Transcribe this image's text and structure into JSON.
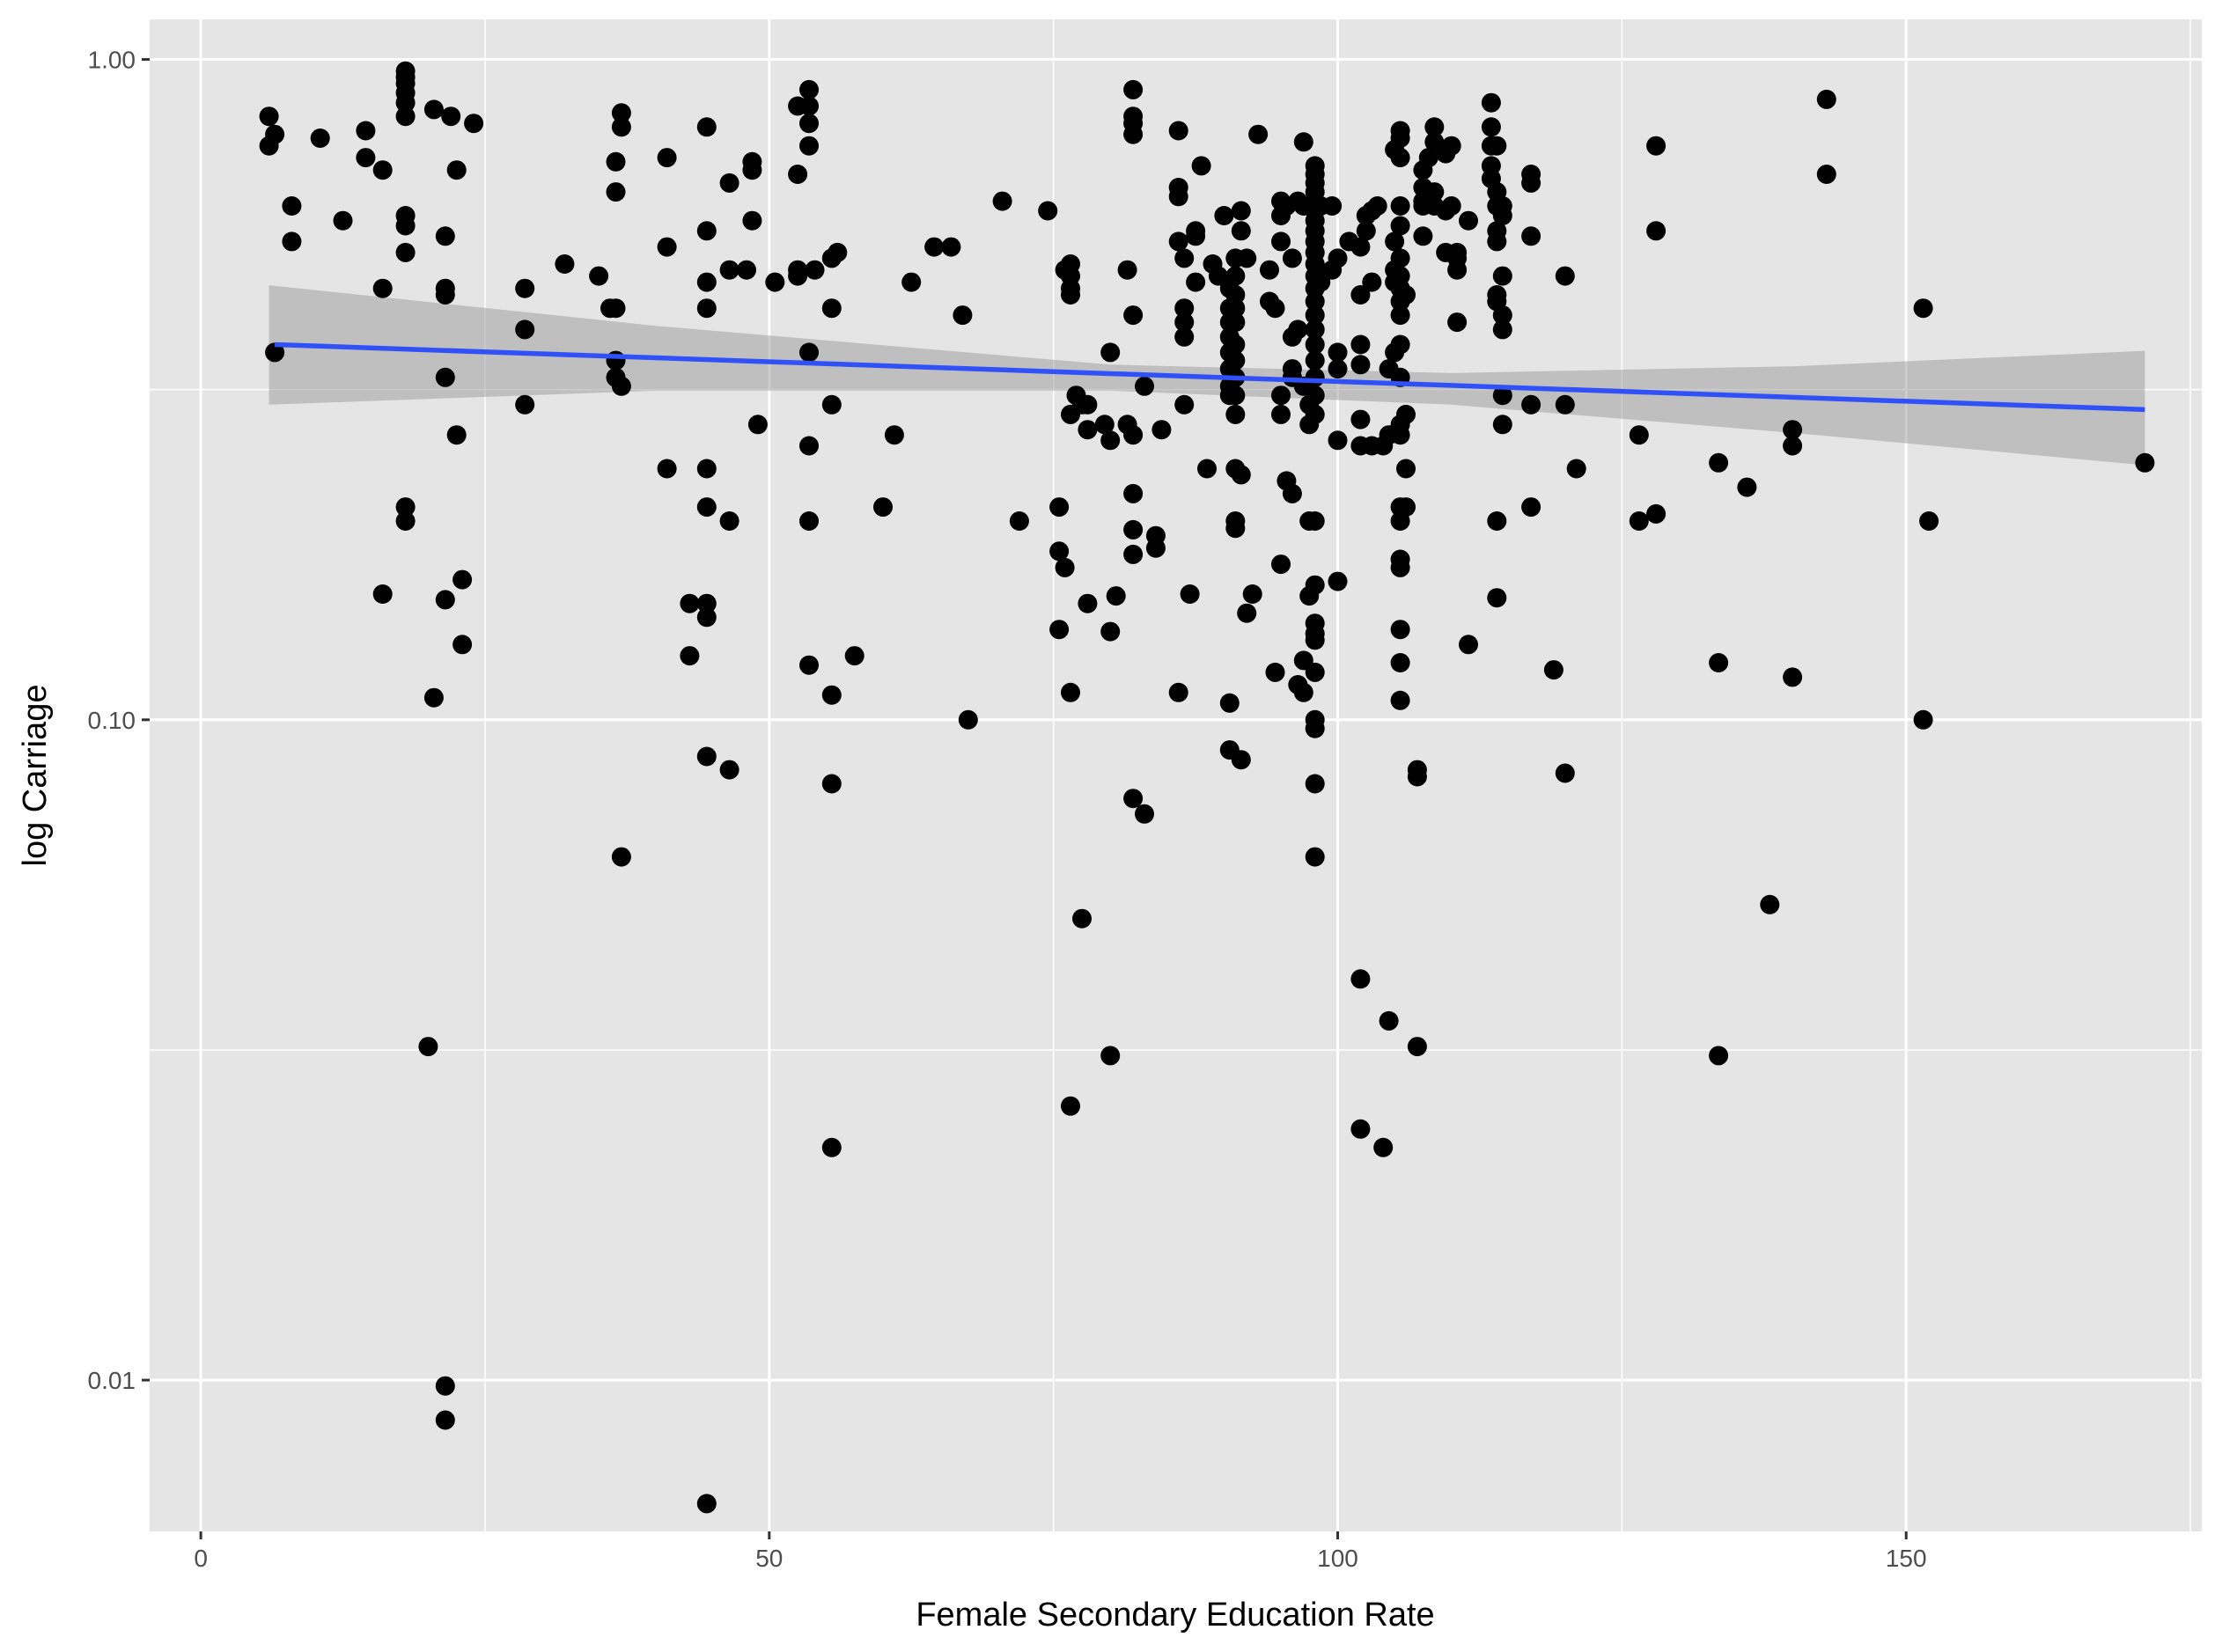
{
  "chart_data": {
    "type": "scatter",
    "xlabel": "Female Secondary Education Rate",
    "ylabel": "log Carriage",
    "y_scale": "log10",
    "xlim": [
      -4.5,
      176
    ],
    "ylim": [
      0.0059,
      1.15
    ],
    "x_ticks": [
      0,
      50,
      100,
      150
    ],
    "x_tick_labels": [
      "0",
      "50",
      "100",
      "150"
    ],
    "y_ticks": [
      0.01,
      0.1,
      1.0
    ],
    "y_tick_labels": [
      "0.01",
      "0.10",
      "1.00"
    ],
    "grid": true,
    "legend": "none",
    "colors": {
      "panel": "#e5e5e5",
      "grid": "#ffffff",
      "points": "#000000",
      "fit_line": "#3050f8",
      "ribbon": "#999999"
    },
    "trend": {
      "method": "lm",
      "x": [
        6.5,
        171
      ],
      "y": [
        0.37,
        0.295
      ],
      "ribbon": [
        {
          "x": 6,
          "lower": 0.3,
          "upper": 0.455
        },
        {
          "x": 40,
          "lower": 0.315,
          "upper": 0.395
        },
        {
          "x": 80,
          "lower": 0.315,
          "upper": 0.345
        },
        {
          "x": 110,
          "lower": 0.3,
          "upper": 0.335
        },
        {
          "x": 140,
          "lower": 0.272,
          "upper": 0.343
        },
        {
          "x": 171,
          "lower": 0.243,
          "upper": 0.362
        }
      ]
    },
    "points": [
      [
        6,
        0.82
      ],
      [
        6,
        0.74
      ],
      [
        6.5,
        0.77
      ],
      [
        6.5,
        0.36
      ],
      [
        8,
        0.6
      ],
      [
        8,
        0.53
      ],
      [
        10.5,
        0.76
      ],
      [
        12.5,
        0.57
      ],
      [
        14.5,
        0.78
      ],
      [
        14.5,
        0.71
      ],
      [
        16,
        0.68
      ],
      [
        16,
        0.45
      ],
      [
        16,
        0.155
      ],
      [
        18,
        0.96
      ],
      [
        18,
        0.94
      ],
      [
        18,
        0.92
      ],
      [
        18,
        0.89
      ],
      [
        18,
        0.86
      ],
      [
        18,
        0.82
      ],
      [
        18,
        0.58
      ],
      [
        18,
        0.56
      ],
      [
        18,
        0.51
      ],
      [
        18,
        0.21
      ],
      [
        18,
        0.2
      ],
      [
        20,
        0.032
      ],
      [
        20.5,
        0.84
      ],
      [
        20.5,
        0.108
      ],
      [
        21.5,
        0.54
      ],
      [
        21.5,
        0.45
      ],
      [
        21.5,
        0.44
      ],
      [
        21.5,
        0.33
      ],
      [
        21.5,
        0.152
      ],
      [
        21.5,
        0.0098
      ],
      [
        21.5,
        0.0087
      ],
      [
        22,
        0.82
      ],
      [
        22.5,
        0.68
      ],
      [
        22.5,
        0.27
      ],
      [
        23,
        0.163
      ],
      [
        23,
        0.13
      ],
      [
        24,
        0.8
      ],
      [
        28.5,
        0.45
      ],
      [
        28.5,
        0.39
      ],
      [
        28.5,
        0.3
      ],
      [
        32,
        0.49
      ],
      [
        35,
        0.47
      ],
      [
        36,
        0.42
      ],
      [
        36.5,
        0.7
      ],
      [
        36.5,
        0.63
      ],
      [
        36.5,
        0.42
      ],
      [
        36.5,
        0.35
      ],
      [
        36.5,
        0.33
      ],
      [
        37,
        0.32
      ],
      [
        37,
        0.83
      ],
      [
        37,
        0.79
      ],
      [
        37,
        0.062
      ],
      [
        41,
        0.71
      ],
      [
        41,
        0.52
      ],
      [
        41,
        0.24
      ],
      [
        43,
        0.15
      ],
      [
        43,
        0.125
      ],
      [
        44.5,
        0.79
      ],
      [
        44.5,
        0.55
      ],
      [
        44.5,
        0.46
      ],
      [
        44.5,
        0.42
      ],
      [
        44.5,
        0.24
      ],
      [
        44.5,
        0.21
      ],
      [
        44.5,
        0.15
      ],
      [
        44.5,
        0.143
      ],
      [
        44.5,
        0.088
      ],
      [
        44.5,
        0.0065
      ],
      [
        46.5,
        0.65
      ],
      [
        46.5,
        0.48
      ],
      [
        46.5,
        0.2
      ],
      [
        46.5,
        0.084
      ],
      [
        48,
        0.48
      ],
      [
        48.5,
        0.68
      ],
      [
        48.5,
        0.57
      ],
      [
        48.5,
        0.7
      ],
      [
        49,
        0.28
      ],
      [
        50.5,
        0.46
      ],
      [
        52.5,
        0.85
      ],
      [
        52.5,
        0.67
      ],
      [
        52.5,
        0.48
      ],
      [
        52.5,
        0.47
      ],
      [
        53.5,
        0.9
      ],
      [
        53.5,
        0.85
      ],
      [
        53.5,
        0.8
      ],
      [
        53.5,
        0.74
      ],
      [
        53.5,
        0.36
      ],
      [
        53.5,
        0.26
      ],
      [
        53.5,
        0.2
      ],
      [
        53.5,
        0.121
      ],
      [
        54,
        0.48
      ],
      [
        55.5,
        0.5
      ],
      [
        55.5,
        0.42
      ],
      [
        55.5,
        0.3
      ],
      [
        55.5,
        0.109
      ],
      [
        55.5,
        0.08
      ],
      [
        55.5,
        0.0225
      ],
      [
        56,
        0.51
      ],
      [
        57.5,
        0.125
      ],
      [
        60,
        0.21
      ],
      [
        61,
        0.27
      ],
      [
        62.5,
        0.46
      ],
      [
        64.5,
        0.52
      ],
      [
        66,
        0.52
      ],
      [
        67,
        0.41
      ],
      [
        67.5,
        0.1
      ],
      [
        70.5,
        0.61
      ],
      [
        72,
        0.2
      ],
      [
        74.5,
        0.59
      ],
      [
        75.5,
        0.21
      ],
      [
        75.5,
        0.18
      ],
      [
        75.5,
        0.137
      ],
      [
        76,
        0.48
      ],
      [
        76,
        0.17
      ],
      [
        76.5,
        0.49
      ],
      [
        76.5,
        0.47
      ],
      [
        76.5,
        0.45
      ],
      [
        76.5,
        0.44
      ],
      [
        76.5,
        0.29
      ],
      [
        76.5,
        0.11
      ],
      [
        76.5,
        0.026
      ],
      [
        77,
        0.31
      ],
      [
        77.5,
        0.3
      ],
      [
        77.5,
        0.05
      ],
      [
        78,
        0.3
      ],
      [
        78,
        0.275
      ],
      [
        78,
        0.15
      ],
      [
        79.5,
        0.28
      ],
      [
        80,
        0.36
      ],
      [
        80,
        0.265
      ],
      [
        80,
        0.136
      ],
      [
        80,
        0.031
      ],
      [
        80.5,
        0.154
      ],
      [
        81.5,
        0.48
      ],
      [
        81.5,
        0.28
      ],
      [
        82,
        0.9
      ],
      [
        82,
        0.82
      ],
      [
        82,
        0.8
      ],
      [
        82,
        0.77
      ],
      [
        82,
        0.41
      ],
      [
        82,
        0.27
      ],
      [
        82,
        0.22
      ],
      [
        82,
        0.194
      ],
      [
        82,
        0.178
      ],
      [
        82,
        0.076
      ],
      [
        83,
        0.32
      ],
      [
        83,
        0.072
      ],
      [
        84,
        0.182
      ],
      [
        84,
        0.19
      ],
      [
        84.5,
        0.275
      ],
      [
        86,
        0.78
      ],
      [
        86,
        0.64
      ],
      [
        86,
        0.62
      ],
      [
        86,
        0.53
      ],
      [
        86,
        0.11
      ],
      [
        86.5,
        0.5
      ],
      [
        86.5,
        0.42
      ],
      [
        86.5,
        0.4
      ],
      [
        86.5,
        0.38
      ],
      [
        86.5,
        0.3
      ],
      [
        87,
        0.155
      ],
      [
        87.5,
        0.55
      ],
      [
        87.5,
        0.54
      ],
      [
        87.5,
        0.46
      ],
      [
        88,
        0.69
      ],
      [
        88.5,
        0.24
      ],
      [
        89,
        0.49
      ],
      [
        89.5,
        0.47
      ],
      [
        90,
        0.58
      ],
      [
        90.5,
        0.45
      ],
      [
        90.5,
        0.42
      ],
      [
        90.5,
        0.4
      ],
      [
        90.5,
        0.38
      ],
      [
        90.5,
        0.36
      ],
      [
        90.5,
        0.34
      ],
      [
        90.5,
        0.32
      ],
      [
        90.5,
        0.31
      ],
      [
        90.5,
        0.106
      ],
      [
        90.5,
        0.09
      ],
      [
        91,
        0.5
      ],
      [
        91,
        0.47
      ],
      [
        91,
        0.44
      ],
      [
        91,
        0.42
      ],
      [
        91,
        0.4
      ],
      [
        91,
        0.37
      ],
      [
        91,
        0.35
      ],
      [
        91,
        0.33
      ],
      [
        91,
        0.31
      ],
      [
        91,
        0.29
      ],
      [
        91,
        0.24
      ],
      [
        91,
        0.2
      ],
      [
        91,
        0.195
      ],
      [
        91.5,
        0.087
      ],
      [
        91.5,
        0.59
      ],
      [
        91.5,
        0.55
      ],
      [
        91.5,
        0.235
      ],
      [
        92,
        0.5
      ],
      [
        92,
        0.145
      ],
      [
        92.5,
        0.155
      ],
      [
        93,
        0.77
      ],
      [
        94,
        0.48
      ],
      [
        94,
        0.43
      ],
      [
        94.5,
        0.42
      ],
      [
        94.5,
        0.118
      ],
      [
        95,
        0.61
      ],
      [
        95,
        0.58
      ],
      [
        95,
        0.53
      ],
      [
        95,
        0.31
      ],
      [
        95,
        0.29
      ],
      [
        95,
        0.172
      ],
      [
        95.5,
        0.6
      ],
      [
        95.5,
        0.23
      ],
      [
        96,
        0.5
      ],
      [
        96,
        0.38
      ],
      [
        96,
        0.34
      ],
      [
        96,
        0.33
      ],
      [
        96,
        0.22
      ],
      [
        96.5,
        0.61
      ],
      [
        96.5,
        0.39
      ],
      [
        96.5,
        0.113
      ],
      [
        97,
        0.75
      ],
      [
        97,
        0.6
      ],
      [
        97,
        0.11
      ],
      [
        97,
        0.123
      ],
      [
        97,
        0.32
      ],
      [
        97.5,
        0.6
      ],
      [
        97.5,
        0.3
      ],
      [
        97.5,
        0.28
      ],
      [
        97.5,
        0.2
      ],
      [
        97.5,
        0.154
      ],
      [
        98,
        0.69
      ],
      [
        98,
        0.67
      ],
      [
        98,
        0.65
      ],
      [
        98,
        0.63
      ],
      [
        98,
        0.61
      ],
      [
        98,
        0.59
      ],
      [
        98,
        0.57
      ],
      [
        98,
        0.55
      ],
      [
        98,
        0.53
      ],
      [
        98,
        0.51
      ],
      [
        98,
        0.49
      ],
      [
        98,
        0.47
      ],
      [
        98,
        0.45
      ],
      [
        98,
        0.43
      ],
      [
        98,
        0.41
      ],
      [
        98,
        0.39
      ],
      [
        98,
        0.37
      ],
      [
        98,
        0.35
      ],
      [
        98,
        0.33
      ],
      [
        98,
        0.31
      ],
      [
        98,
        0.29
      ],
      [
        98,
        0.2
      ],
      [
        98,
        0.16
      ],
      [
        98,
        0.14
      ],
      [
        98,
        0.135
      ],
      [
        98,
        0.132
      ],
      [
        98,
        0.118
      ],
      [
        98,
        0.1
      ],
      [
        98,
        0.097
      ],
      [
        98,
        0.08
      ],
      [
        98,
        0.062
      ],
      [
        98.5,
        0.6
      ],
      [
        98.5,
        0.46
      ],
      [
        99.5,
        0.6
      ],
      [
        99.5,
        0.48
      ],
      [
        100,
        0.5
      ],
      [
        100,
        0.36
      ],
      [
        100,
        0.34
      ],
      [
        100,
        0.265
      ],
      [
        100,
        0.162
      ],
      [
        101,
        0.53
      ],
      [
        102,
        0.52
      ],
      [
        102,
        0.44
      ],
      [
        102,
        0.37
      ],
      [
        102,
        0.345
      ],
      [
        102,
        0.285
      ],
      [
        102,
        0.26
      ],
      [
        102,
        0.0405
      ],
      [
        102,
        0.024
      ],
      [
        102.5,
        0.58
      ],
      [
        102.5,
        0.55
      ],
      [
        103,
        0.46
      ],
      [
        103,
        0.59
      ],
      [
        103,
        0.26
      ],
      [
        103.5,
        0.6
      ],
      [
        104,
        0.26
      ],
      [
        104,
        0.0225
      ],
      [
        104.5,
        0.34
      ],
      [
        104.5,
        0.27
      ],
      [
        104.5,
        0.035
      ],
      [
        105,
        0.73
      ],
      [
        105,
        0.53
      ],
      [
        105,
        0.48
      ],
      [
        105,
        0.46
      ],
      [
        105,
        0.36
      ],
      [
        105.5,
        0.78
      ],
      [
        105.5,
        0.76
      ],
      [
        105.5,
        0.71
      ],
      [
        105.5,
        0.6
      ],
      [
        105.5,
        0.56
      ],
      [
        105.5,
        0.5
      ],
      [
        105.5,
        0.47
      ],
      [
        105.5,
        0.45
      ],
      [
        105.5,
        0.43
      ],
      [
        105.5,
        0.41
      ],
      [
        105.5,
        0.37
      ],
      [
        105.5,
        0.33
      ],
      [
        105.5,
        0.28
      ],
      [
        105.5,
        0.27
      ],
      [
        105.5,
        0.21
      ],
      [
        105.5,
        0.2
      ],
      [
        105.5,
        0.175
      ],
      [
        105.5,
        0.17
      ],
      [
        105.5,
        0.137
      ],
      [
        105.5,
        0.122
      ],
      [
        105.5,
        0.107
      ],
      [
        106,
        0.44
      ],
      [
        106,
        0.29
      ],
      [
        106,
        0.24
      ],
      [
        106,
        0.21
      ],
      [
        107,
        0.032
      ],
      [
        107,
        0.082
      ],
      [
        107,
        0.084
      ],
      [
        107.5,
        0.68
      ],
      [
        107.5,
        0.64
      ],
      [
        107.5,
        0.61
      ],
      [
        107.5,
        0.6
      ],
      [
        107.5,
        0.54
      ],
      [
        108,
        0.71
      ],
      [
        108.5,
        0.79
      ],
      [
        108.5,
        0.75
      ],
      [
        108.5,
        0.63
      ],
      [
        108.5,
        0.6
      ],
      [
        109.5,
        0.72
      ],
      [
        109.5,
        0.59
      ],
      [
        109.5,
        0.51
      ],
      [
        110,
        0.6
      ],
      [
        110,
        0.74
      ],
      [
        110.5,
        0.51
      ],
      [
        110.5,
        0.48
      ],
      [
        110.5,
        0.5
      ],
      [
        110.5,
        0.4
      ],
      [
        111.5,
        0.57
      ],
      [
        111.5,
        0.13
      ],
      [
        113.5,
        0.86
      ],
      [
        113.5,
        0.79
      ],
      [
        113.5,
        0.74
      ],
      [
        113.5,
        0.69
      ],
      [
        113.5,
        0.66
      ],
      [
        114,
        0.74
      ],
      [
        114,
        0.63
      ],
      [
        114,
        0.6
      ],
      [
        114,
        0.55
      ],
      [
        114,
        0.53
      ],
      [
        114,
        0.44
      ],
      [
        114,
        0.43
      ],
      [
        114,
        0.2
      ],
      [
        114,
        0.153
      ],
      [
        114.5,
        0.6
      ],
      [
        114.5,
        0.58
      ],
      [
        114.5,
        0.47
      ],
      [
        114.5,
        0.41
      ],
      [
        114.5,
        0.39
      ],
      [
        114.5,
        0.31
      ],
      [
        114.5,
        0.28
      ],
      [
        117,
        0.67
      ],
      [
        117,
        0.65
      ],
      [
        117,
        0.54
      ],
      [
        117,
        0.3
      ],
      [
        117,
        0.21
      ],
      [
        119,
        0.119
      ],
      [
        120,
        0.47
      ],
      [
        120,
        0.3
      ],
      [
        120,
        0.083
      ],
      [
        121,
        0.24
      ],
      [
        126.5,
        0.27
      ],
      [
        126.5,
        0.2
      ],
      [
        128,
        0.74
      ],
      [
        128,
        0.55
      ],
      [
        128,
        0.205
      ],
      [
        133.5,
        0.245
      ],
      [
        133.5,
        0.122
      ],
      [
        133.5,
        0.031
      ],
      [
        136,
        0.225
      ],
      [
        138,
        0.0525
      ],
      [
        140,
        0.275
      ],
      [
        140,
        0.26
      ],
      [
        140,
        0.116
      ],
      [
        143,
        0.87
      ],
      [
        143,
        0.67
      ],
      [
        151.5,
        0.42
      ],
      [
        151.5,
        0.1
      ],
      [
        152,
        0.2
      ],
      [
        171,
        0.245
      ]
    ]
  }
}
